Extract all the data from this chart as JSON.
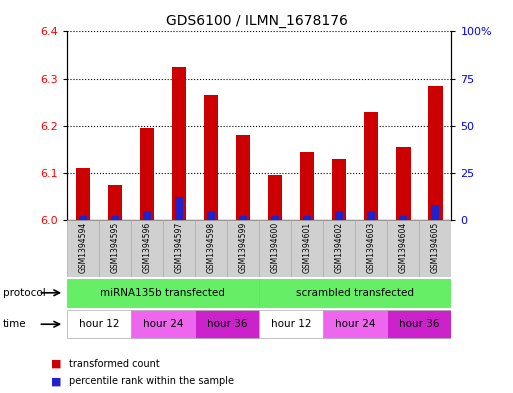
{
  "title": "GDS6100 / ILMN_1678176",
  "samples": [
    "GSM1394594",
    "GSM1394595",
    "GSM1394596",
    "GSM1394597",
    "GSM1394598",
    "GSM1394599",
    "GSM1394600",
    "GSM1394601",
    "GSM1394602",
    "GSM1394603",
    "GSM1394604",
    "GSM1394605"
  ],
  "red_values": [
    6.11,
    6.075,
    6.195,
    6.325,
    6.265,
    6.18,
    6.095,
    6.145,
    6.13,
    6.23,
    6.155,
    6.285
  ],
  "blue_percentiles": [
    2,
    2,
    5,
    12,
    5,
    2,
    2,
    2,
    5,
    5,
    2,
    8
  ],
  "y_min": 6.0,
  "y_max": 6.4,
  "y_ticks_left": [
    6.0,
    6.1,
    6.2,
    6.3,
    6.4
  ],
  "y_ticks_right": [
    0,
    25,
    50,
    75,
    100
  ],
  "y_ticks_right_labels": [
    "0",
    "25",
    "50",
    "75",
    "100%"
  ],
  "bar_width": 0.45,
  "blue_bar_width": 0.25,
  "red_color": "#cc0000",
  "blue_color": "#2222cc",
  "protocol_labels": [
    "miRNA135b transfected",
    "scrambled transfected"
  ],
  "protocol_color": "#66ee66",
  "time_labels": [
    "hour 12",
    "hour 24",
    "hour 36",
    "hour 12",
    "hour 24",
    "hour 36"
  ],
  "time_colors": [
    "#ffffff",
    "#ee66ee",
    "#cc22cc",
    "#ffffff",
    "#ee66ee",
    "#cc22cc"
  ],
  "sample_bg_color": "#d0d0d0",
  "legend_red_label": "transformed count",
  "legend_blue_label": "percentile rank within the sample",
  "figure_width": 5.13,
  "figure_height": 3.93
}
